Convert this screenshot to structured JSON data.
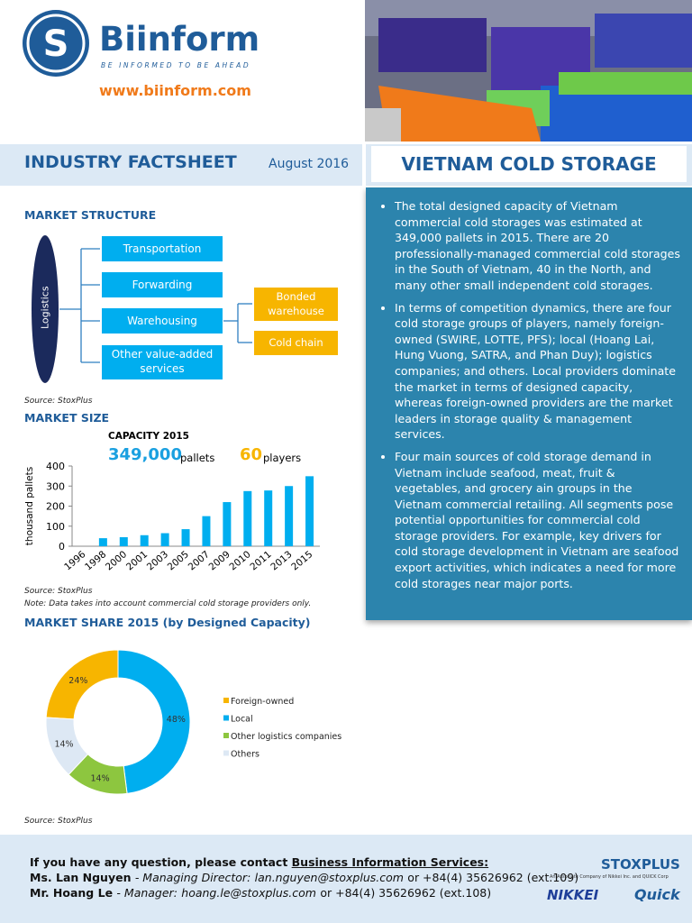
{
  "header": {
    "brand": "Biinform",
    "tagline": "BE INFORMED TO BE AHEAD",
    "website": "www.biinform.com",
    "doc_type": "INDUSTRY FACTSHEET",
    "date": "August 2016",
    "title": "VIETNAM COLD STORAGE"
  },
  "market_structure": {
    "heading": "MARKET STRUCTURE",
    "root": "Logistics",
    "nodes": [
      "Transportation",
      "Forwarding",
      "Warehousing",
      "Other value-added services"
    ],
    "sub_nodes": [
      "Bonded warehouse",
      "Cold chain"
    ],
    "source": "Source: StoxPlus"
  },
  "market_size": {
    "heading": "MARKET SIZE",
    "capacity_label": "CAPACITY 2015",
    "capacity": "349,000",
    "capacity_unit": "pallets",
    "players": "60",
    "players_unit": "players",
    "chart_data": {
      "type": "bar",
      "y_label": "thousand pallets",
      "categories": [
        "1996",
        "1998",
        "2000",
        "2001",
        "2003",
        "2005",
        "2007",
        "2009",
        "2010",
        "2011",
        "2013",
        "2015"
      ],
      "values": [
        null,
        40,
        45,
        55,
        65,
        85,
        150,
        220,
        275,
        278,
        300,
        349
      ],
      "color": "#00aeef",
      "ylim": [
        0,
        400
      ],
      "yticks": [
        0,
        100,
        200,
        300,
        400
      ],
      "grid": false
    },
    "source": "Source: StoxPlus",
    "note": "Note: Data takes into account commercial cold storage providers only."
  },
  "market_share": {
    "heading": "MARKET SHARE 2015 (by Designed Capacity)",
    "chart_data": {
      "type": "donut",
      "legend": "right",
      "series": [
        {
          "name": "Foreign-owned",
          "color": "#f7b500",
          "values": [
            24
          ],
          "value_labels": [
            "24%"
          ]
        },
        {
          "name": "Local",
          "color": "#00aeef",
          "values": [
            48
          ],
          "value_labels": [
            "48%"
          ]
        },
        {
          "name": "Other logistics companies",
          "color": "#8dc63f",
          "values": [
            14
          ],
          "value_labels": [
            "14%"
          ]
        },
        {
          "name": "Others",
          "color": "#dde8f4",
          "values": [
            14
          ],
          "value_labels": [
            "14%"
          ]
        }
      ]
    },
    "source": "Source: StoxPlus"
  },
  "summary": {
    "bullets": [
      "The total designed capacity of Vietnam commercial cold storages was estimated at 349,000 pallets in 2015. There are 20 professionally-managed commercial cold storages in the South of Vietnam, 40 in the North, and many other small independent cold storages.",
      "In terms of competition dynamics, there are four cold storage groups of players, namely foreign-owned (SWIRE, LOTTE, PFS); local (Hoang Lai, Hung Vuong, SATRA, and Phan Duy); logistics companies; and others. Local providers dominate the market in terms of designed capacity, whereas foreign-owned providers are the market leaders in storage quality & management services.",
      "Four main sources of cold storage demand in Vietnam include seafood, meat, fruit & vegetables, and grocery ain groups in the Vietnam commercial retailing. All segments pose potential opportunities for commercial cold storage providers. For example, key drivers for cold storage development in Vietnam are seafood export activities, which indicates a need for more cold storages near major ports."
    ]
  },
  "footer": {
    "intro": "If you have any question, please contact",
    "service": "Business Information Services:",
    "contacts": [
      {
        "name": "Ms. Lan Nguyen",
        "role": "- Managing Director:",
        "email": "lan.nguyen@stoxplus.com",
        "phone": "or +84(4) 35626962 (ext.109)"
      },
      {
        "name": "Mr. Hoang Le",
        "role": "- Manager:",
        "email": "hoang.le@stoxplus.com",
        "phone": "or +84(4) 35626962 (ext.108)"
      }
    ],
    "logo": "STOXPLUS",
    "logo_note": "An Associate Company of Nikkei Inc. and QUICK Corp",
    "partner1": "NIKKEI",
    "partner2": "Quick"
  }
}
